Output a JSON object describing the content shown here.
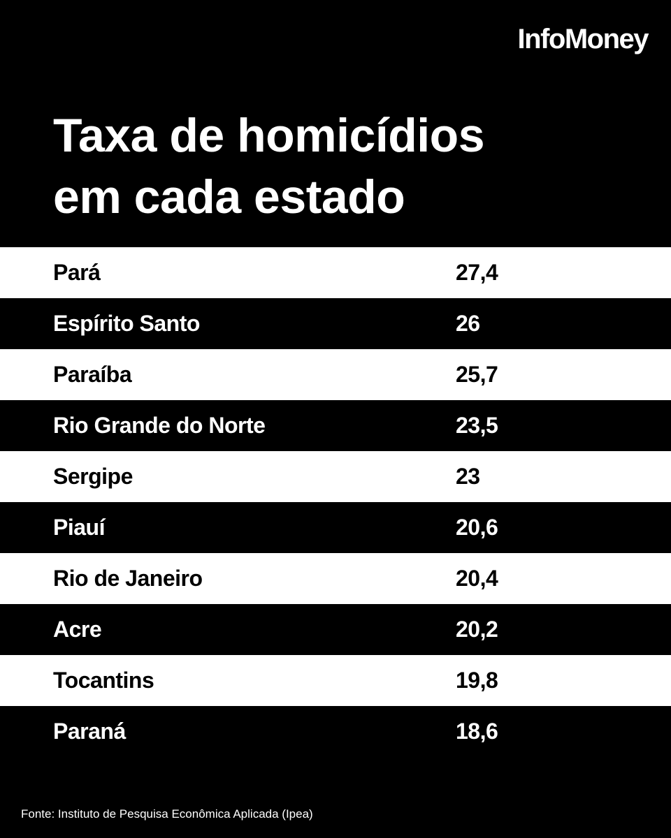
{
  "brand": "InfoMoney",
  "title_line1": "Taxa de homicídios",
  "title_line2": "em cada estado",
  "source": "Fonte: Instituto de Pesquisa Econômica Aplicada (Ipea)",
  "colors": {
    "background": "#000000",
    "light_row": "#ffffff",
    "dark_row": "#000000",
    "text_on_dark": "#ffffff",
    "text_on_light": "#000000"
  },
  "chart_data": {
    "type": "table",
    "title": "Taxa de homicídios em cada estado",
    "rows": [
      {
        "state": "Pará",
        "value": "27,4"
      },
      {
        "state": "Espírito Santo",
        "value": "26"
      },
      {
        "state": "Paraíba",
        "value": "25,7"
      },
      {
        "state": "Rio Grande do Norte",
        "value": "23,5"
      },
      {
        "state": "Sergipe",
        "value": "23"
      },
      {
        "state": "Piauí",
        "value": "20,6"
      },
      {
        "state": "Rio de Janeiro",
        "value": "20,4"
      },
      {
        "state": "Acre",
        "value": "20,2"
      },
      {
        "state": "Tocantins",
        "value": "19,8"
      },
      {
        "state": "Paraná",
        "value": "18,6"
      }
    ]
  }
}
